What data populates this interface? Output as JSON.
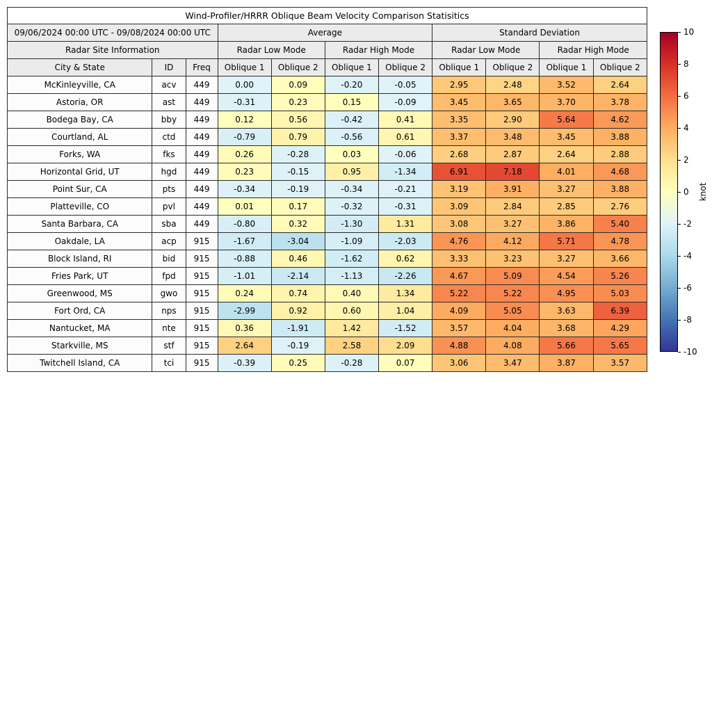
{
  "figure": {
    "title": "Wind-Profiler/HRRR Oblique Beam Velocity Comparison Statisitics",
    "date_range": "09/06/2024 00:00 UTC - 09/08/2024 00:00 UTC",
    "headers": {
      "site_info": "Radar Site Information",
      "average": "Average",
      "std_dev": "Standard Deviation",
      "low_mode": "Radar Low Mode",
      "high_mode": "Radar High Mode",
      "city": "City & State",
      "id": "ID",
      "freq": "Freq",
      "oblique1": "Oblique 1",
      "oblique2": "Oblique 2"
    }
  },
  "chart_data": {
    "type": "table",
    "title": "Wind-Profiler/HRRR Oblique Beam Velocity Comparison Statisitics",
    "subtitle": "09/06/2024 00:00 UTC - 09/08/2024 00:00 UTC",
    "value_columns": [
      "avg_low_oblique1",
      "avg_low_oblique2",
      "avg_high_oblique1",
      "avg_high_oblique2",
      "std_low_oblique1",
      "std_low_oblique2",
      "std_high_oblique1",
      "std_high_oblique2"
    ],
    "rows": [
      {
        "city": "McKinleyville, CA",
        "id": "acv",
        "freq": "449",
        "values": [
          0.0,
          0.09,
          -0.2,
          -0.05,
          2.95,
          2.48,
          3.52,
          2.64
        ]
      },
      {
        "city": "Astoria, OR",
        "id": "ast",
        "freq": "449",
        "values": [
          -0.31,
          0.23,
          0.15,
          -0.09,
          3.45,
          3.65,
          3.7,
          3.78
        ]
      },
      {
        "city": "Bodega Bay, CA",
        "id": "bby",
        "freq": "449",
        "values": [
          0.12,
          0.56,
          -0.42,
          0.41,
          3.35,
          2.9,
          5.64,
          4.62
        ]
      },
      {
        "city": "Courtland, AL",
        "id": "ctd",
        "freq": "449",
        "values": [
          -0.79,
          0.79,
          -0.56,
          0.61,
          3.37,
          3.48,
          3.45,
          3.88
        ]
      },
      {
        "city": "Forks, WA",
        "id": "fks",
        "freq": "449",
        "values": [
          0.26,
          -0.28,
          0.03,
          -0.06,
          2.68,
          2.87,
          2.64,
          2.88
        ]
      },
      {
        "city": "Horizontal Grid, UT",
        "id": "hgd",
        "freq": "449",
        "values": [
          0.23,
          -0.15,
          0.95,
          -1.34,
          6.91,
          7.18,
          4.01,
          4.68
        ]
      },
      {
        "city": "Point Sur, CA",
        "id": "pts",
        "freq": "449",
        "values": [
          -0.34,
          -0.19,
          -0.34,
          -0.21,
          3.19,
          3.91,
          3.27,
          3.88
        ]
      },
      {
        "city": "Platteville, CO",
        "id": "pvl",
        "freq": "449",
        "values": [
          0.01,
          0.17,
          -0.32,
          -0.31,
          3.09,
          2.84,
          2.85,
          2.76
        ]
      },
      {
        "city": "Santa Barbara, CA",
        "id": "sba",
        "freq": "449",
        "values": [
          -0.8,
          0.32,
          -1.3,
          1.31,
          3.08,
          3.27,
          3.86,
          5.4
        ]
      },
      {
        "city": "Oakdale, LA",
        "id": "acp",
        "freq": "915",
        "values": [
          -1.67,
          -3.04,
          -1.09,
          -2.03,
          4.76,
          4.12,
          5.71,
          4.78
        ]
      },
      {
        "city": "Block Island, RI",
        "id": "bid",
        "freq": "915",
        "values": [
          -0.88,
          0.46,
          -1.62,
          0.62,
          3.33,
          3.23,
          3.27,
          3.66
        ]
      },
      {
        "city": "Fries Park, UT",
        "id": "fpd",
        "freq": "915",
        "values": [
          -1.01,
          -2.14,
          -1.13,
          -2.26,
          4.67,
          5.09,
          4.54,
          5.26
        ]
      },
      {
        "city": "Greenwood, MS",
        "id": "gwo",
        "freq": "915",
        "values": [
          0.24,
          0.74,
          0.4,
          1.34,
          5.22,
          5.22,
          4.95,
          5.03
        ]
      },
      {
        "city": "Fort Ord, CA",
        "id": "nps",
        "freq": "915",
        "values": [
          -2.99,
          0.92,
          0.6,
          1.04,
          4.09,
          5.05,
          3.63,
          6.39
        ]
      },
      {
        "city": "Nantucket, MA",
        "id": "nte",
        "freq": "915",
        "values": [
          0.36,
          -1.91,
          1.42,
          -1.52,
          3.57,
          4.04,
          3.68,
          4.29
        ]
      },
      {
        "city": "Starkville, MS",
        "id": "stf",
        "freq": "915",
        "values": [
          2.64,
          -0.19,
          2.58,
          2.09,
          4.88,
          4.08,
          5.66,
          5.65
        ]
      },
      {
        "city": "Twitchell Island, CA",
        "id": "tci",
        "freq": "915",
        "values": [
          -0.39,
          0.25,
          -0.28,
          0.07,
          3.06,
          3.47,
          3.87,
          3.57
        ]
      }
    ],
    "colorbar": {
      "label": "knot",
      "min": -10,
      "max": 10,
      "ticks": [
        10,
        8,
        6,
        4,
        2,
        0,
        -2,
        -4,
        -6,
        -8,
        -10
      ],
      "gradient_anchors": [
        [
          -10,
          "#313695"
        ],
        [
          -8,
          "#4575b4"
        ],
        [
          -6,
          "#74add1"
        ],
        [
          -4,
          "#abd9e9"
        ],
        [
          -2,
          "#e0f3f8"
        ],
        [
          0,
          "#ffffbf"
        ],
        [
          2,
          "#fee090"
        ],
        [
          4,
          "#fdae61"
        ],
        [
          6,
          "#f46d43"
        ],
        [
          8,
          "#d73027"
        ],
        [
          10,
          "#a50026"
        ]
      ]
    },
    "cell_colormap": {
      "negative": [
        [
          -10,
          "#313695"
        ],
        [
          -8,
          "#4575b4"
        ],
        [
          -6,
          "#74add1"
        ],
        [
          -4,
          "#abd9e9"
        ],
        [
          -2,
          "#cdeaf3"
        ],
        [
          0,
          "#e0f3f8"
        ]
      ],
      "positive": [
        [
          0,
          "#ffffbf"
        ],
        [
          2,
          "#fee090"
        ],
        [
          4,
          "#fdae61"
        ],
        [
          6,
          "#f46d43"
        ],
        [
          8,
          "#d73027"
        ],
        [
          10,
          "#a50026"
        ]
      ]
    }
  }
}
